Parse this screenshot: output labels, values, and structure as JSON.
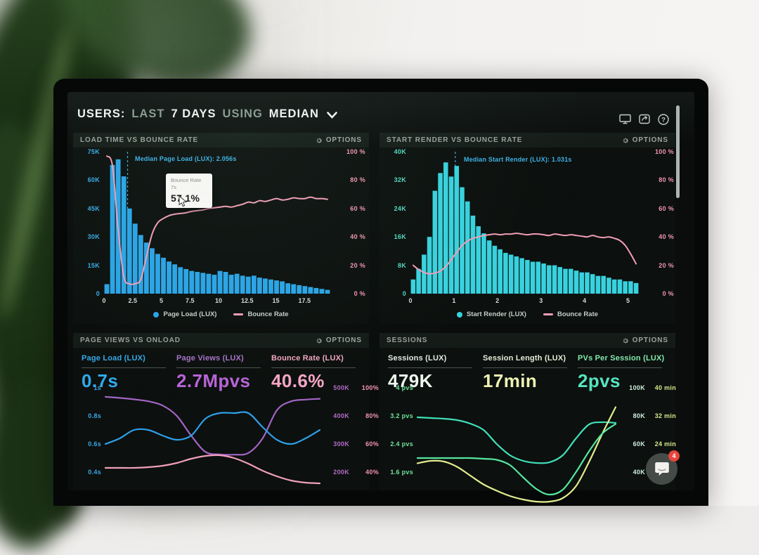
{
  "header": {
    "segments": [
      "USERS:",
      "LAST",
      "7 DAYS",
      "USING",
      "MEDIAN"
    ],
    "help_glyph": "?"
  },
  "chat": {
    "badge": "4"
  },
  "charts": {
    "load_time": {
      "title": "LOAD TIME VS BOUNCE RATE",
      "options_label": "OPTIONS",
      "type": "histogram+line",
      "bar_color": "#2ba4e6",
      "line_color": "#f29db6",
      "y_left": [
        "75K",
        "60K",
        "45K",
        "30K",
        "15K",
        "0"
      ],
      "y_left_color": "#38ace8",
      "y_right": [
        "100 %",
        "80 %",
        "60 %",
        "40 %",
        "20 %",
        "0 %"
      ],
      "y_right_color": "#f295b2",
      "y_max_k": 75,
      "x_ticks": [
        "0",
        "2.5",
        "5",
        "7.5",
        "10",
        "12.5",
        "15",
        "17.5"
      ],
      "x_tick_values": [
        0,
        2.5,
        5,
        7.5,
        10,
        12.5,
        15,
        17.5
      ],
      "x_max": 19.75,
      "bars_k": [
        5,
        68,
        71,
        62,
        45,
        37,
        31,
        27,
        24,
        21,
        19,
        17,
        15.5,
        14,
        13,
        12,
        11.5,
        11,
        10.5,
        10,
        12,
        11.5,
        10,
        10.5,
        9.5,
        9,
        9.5,
        8.5,
        8,
        7.5,
        7,
        6.5,
        5.5,
        5,
        4.5,
        4,
        3.5,
        3,
        2.5,
        2
      ],
      "line_pct": [
        97,
        90,
        45,
        12,
        7,
        7,
        10,
        26,
        42,
        50,
        53,
        55,
        56,
        56.5,
        57,
        58,
        58.5,
        59,
        60,
        60.5,
        61,
        61.5,
        61,
        62,
        63,
        64.5,
        64,
        65.5,
        65,
        66,
        67,
        66,
        66.5,
        67.5,
        67,
        67,
        68,
        67,
        67,
        66.5
      ],
      "median": {
        "label": "Median Page Load (LUX): 2.056s",
        "value": 2.056,
        "color": "#3fb2e8"
      },
      "legend_bar": "Page Load (LUX)",
      "legend_line": "Bounce Rate",
      "tooltip": {
        "series": "Bounce Rate",
        "bucket": "7s",
        "value": "57.1%"
      }
    },
    "start_render": {
      "title": "START RENDER VS BOUNCE RATE",
      "options_label": "OPTIONS",
      "type": "histogram+line",
      "bar_color": "#38d2de",
      "line_color": "#f29db6",
      "y_left": [
        "40K",
        "32K",
        "24K",
        "16K",
        "8K",
        "0"
      ],
      "y_left_color": "#52d8c2",
      "y_right": [
        "100 %",
        "80 %",
        "60 %",
        "40 %",
        "20 %",
        "0 %"
      ],
      "y_right_color": "#f295b2",
      "y_max_k": 40,
      "x_ticks": [
        "0",
        "1",
        "2",
        "3",
        "4",
        "5"
      ],
      "x_tick_values": [
        0,
        1,
        2,
        3,
        4,
        5
      ],
      "x_max": 5.25,
      "bars_k": [
        4,
        7,
        11,
        16,
        29,
        34,
        37,
        33,
        36,
        30,
        26,
        22,
        19,
        17,
        15,
        13.5,
        12.5,
        11.5,
        11,
        10.5,
        10,
        9.5,
        9,
        9,
        8.5,
        8,
        8,
        7.5,
        7,
        7,
        6.5,
        6,
        6,
        5.5,
        5,
        5,
        4.5,
        4,
        4,
        3.5,
        3.5,
        3
      ],
      "line_pct": [
        20,
        17,
        15,
        14,
        14.5,
        16,
        19,
        24,
        29,
        34,
        37,
        39,
        40,
        41,
        41.5,
        42,
        41.5,
        42,
        42,
        42.5,
        42,
        41.5,
        42,
        42,
        41.5,
        41,
        42,
        41.5,
        41,
        41.5,
        41,
        40.5,
        40,
        41,
        40,
        39.5,
        40,
        39,
        37.5,
        34,
        28,
        21
      ],
      "median": {
        "label": "Median Start Render (LUX): 1.031s",
        "value": 1.031,
        "color": "#3fb2e8"
      },
      "legend_bar": "Start Render (LUX)",
      "legend_line": "Bounce Rate"
    },
    "page_views": {
      "title": "PAGE VIEWS VS ONLOAD",
      "options_label": "OPTIONS",
      "type": "line",
      "metrics": [
        {
          "label": "Page Load (LUX)",
          "value": "0.7s",
          "label_color": "#38a8e8",
          "value_color": "#30aaee"
        },
        {
          "label": "Page Views (LUX)",
          "value": "2.7Mpvs",
          "label_color": "#a873c8",
          "value_color": "#b864d8"
        },
        {
          "label": "Bounce Rate (LUX)",
          "value": "40.6%",
          "label_color": "#f2a6c0",
          "value_color": "#f6a6c6"
        }
      ],
      "left_axis": {
        "labels": [
          "1s",
          "0.8s",
          "0.6s",
          "0.4s"
        ],
        "color": "#38a8e8"
      },
      "right_axis_cols": [
        {
          "labels": [
            "500K",
            "400K",
            "300K",
            "200K"
          ],
          "color": "#b16cc9"
        },
        {
          "labels": [
            "100%",
            "80%",
            "60%",
            "40%"
          ],
          "color": "#f295b2"
        }
      ],
      "series": [
        {
          "name": "Page Views (LUX)",
          "color": "#a265c5",
          "range": [
            500,
            135
          ],
          "values": [
            468,
            464,
            459,
            452,
            437,
            400,
            330,
            272,
            263,
            262,
            268,
            320,
            420,
            452,
            458,
            461
          ]
        },
        {
          "name": "Bounce Rate (LUX)",
          "color": "#f0a0ba",
          "range": [
            100,
            27
          ],
          "values": [
            43,
            43,
            43,
            43.5,
            44.5,
            46.5,
            49.5,
            51.5,
            52,
            50,
            46,
            41,
            37,
            34,
            32.5,
            32
          ]
        },
        {
          "name": "Page Load (LUX)",
          "color": "#2f9fe8",
          "range": [
            1,
            0.27
          ],
          "values": [
            0.6,
            0.64,
            0.7,
            0.7,
            0.66,
            0.63,
            0.66,
            0.78,
            0.82,
            0.82,
            0.82,
            0.72,
            0.63,
            0.6,
            0.64,
            0.7
          ]
        }
      ]
    },
    "sessions": {
      "title": "SESSIONS",
      "options_label": "OPTIONS",
      "type": "line",
      "metrics": [
        {
          "label": "Sessions (LUX)",
          "value": "479K",
          "label_color": "#e4ece6",
          "value_color": "#eef6ee"
        },
        {
          "label": "Session Length (LUX)",
          "value": "17min",
          "label_color": "#e8ecd8",
          "value_color": "#eff3b2"
        },
        {
          "label": "PVs Per Session (LUX)",
          "value": "2pvs",
          "label_color": "#82e8ac",
          "value_color": "#55e4c0"
        }
      ],
      "left_axis": {
        "labels": [
          "4 pvs",
          "3.2 pvs",
          "2.4 pvs",
          "1.6 pvs"
        ],
        "color": "#6fe39a"
      },
      "right_axis_cols": [
        {
          "labels": [
            "100K",
            "80K",
            "60K",
            "40K"
          ],
          "color": "#cfeede"
        },
        {
          "labels": [
            "40 min",
            "32 min",
            "24 min",
            ""
          ],
          "color": "#d9e88a"
        }
      ],
      "series": [
        {
          "name": "Sessions (LUX)",
          "color": "#40e0b8",
          "range": [
            100,
            27
          ],
          "values": [
            79,
            78.5,
            78,
            77,
            74.5,
            70,
            60,
            52,
            48,
            46.5,
            47,
            52,
            64,
            74,
            75.5,
            75
          ]
        },
        {
          "name": "Session Length (LUX)",
          "color": "#e3ec8e",
          "range": [
            40,
            10.8
          ],
          "values": [
            18.5,
            19.2,
            19,
            17.5,
            15,
            12.5,
            10.7,
            9.2,
            8.2,
            7.6,
            7.6,
            8.6,
            12,
            19,
            27,
            34.5
          ]
        },
        {
          "name": "PVs Per Session (LUX)",
          "color": "#55e6a0",
          "range": [
            4,
            1.08
          ],
          "values": [
            2.0,
            2.0,
            2.0,
            2.0,
            2.0,
            1.98,
            1.95,
            1.8,
            1.45,
            1.12,
            0.96,
            1.1,
            1.6,
            2.2,
            2.7,
            2.97
          ]
        }
      ]
    }
  }
}
